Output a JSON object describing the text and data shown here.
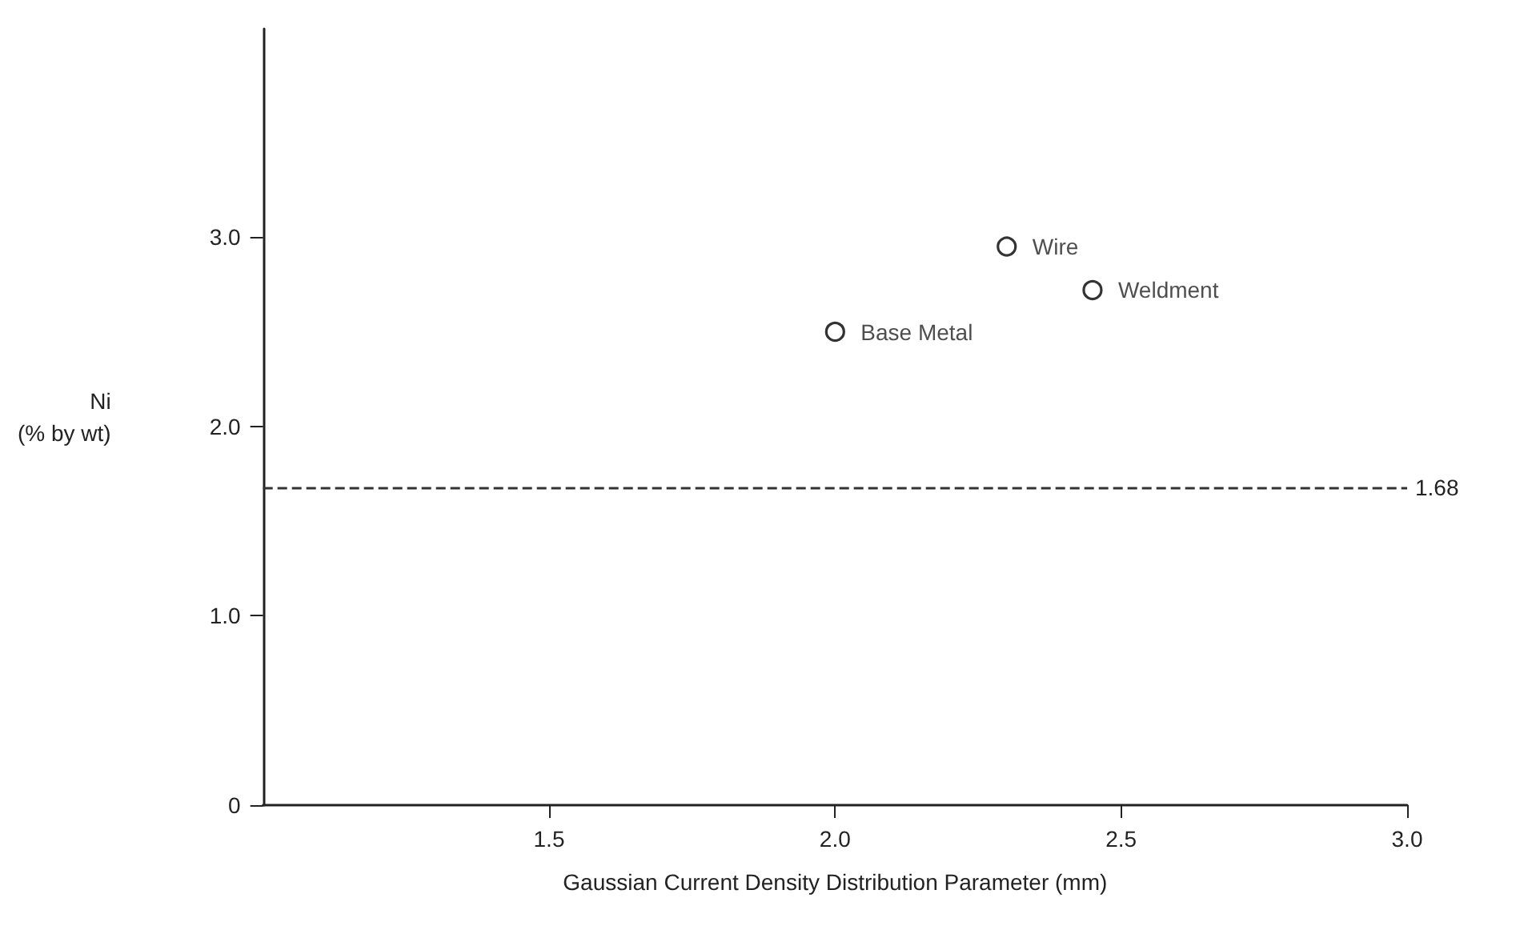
{
  "chart_data": {
    "type": "scatter",
    "xlabel": "Gaussian Current Density Distribution Parameter (mm)",
    "ylabel": "Ni\n(% by wt)",
    "series": [
      {
        "name": "Base Metal",
        "color": "#000000",
        "x": [
          2.0
        ],
        "values": [
          2.5
        ]
      },
      {
        "name": "Wire",
        "color": "#000000",
        "x": [
          2.3
        ],
        "values": [
          2.95
        ]
      },
      {
        "name": "Weldment",
        "color": "#000000",
        "x": [
          2.45
        ],
        "values": [
          2.72
        ]
      }
    ],
    "xlim": [
      1.0,
      3.0
    ],
    "xticks": [
      {
        "value": 1.5,
        "label": "1.5"
      },
      {
        "value": 2.0,
        "label": "2.0"
      },
      {
        "value": 2.5,
        "label": "2.5"
      },
      {
        "value": 3.0,
        "label": "3.0"
      }
    ],
    "ylim": [
      0,
      4.1
    ],
    "yticks": [
      {
        "value": 0,
        "label": "0"
      },
      {
        "value": 1,
        "label": "1.0"
      },
      {
        "value": 2,
        "label": "2.0"
      },
      {
        "value": 3,
        "label": "3.0"
      }
    ],
    "ref_lines": [
      {
        "axis": "y",
        "value": 1.68,
        "label": "1.68",
        "line_style": "dashed",
        "color": "#333333"
      }
    ],
    "marker": "circle",
    "grid": false,
    "legend": false
  }
}
